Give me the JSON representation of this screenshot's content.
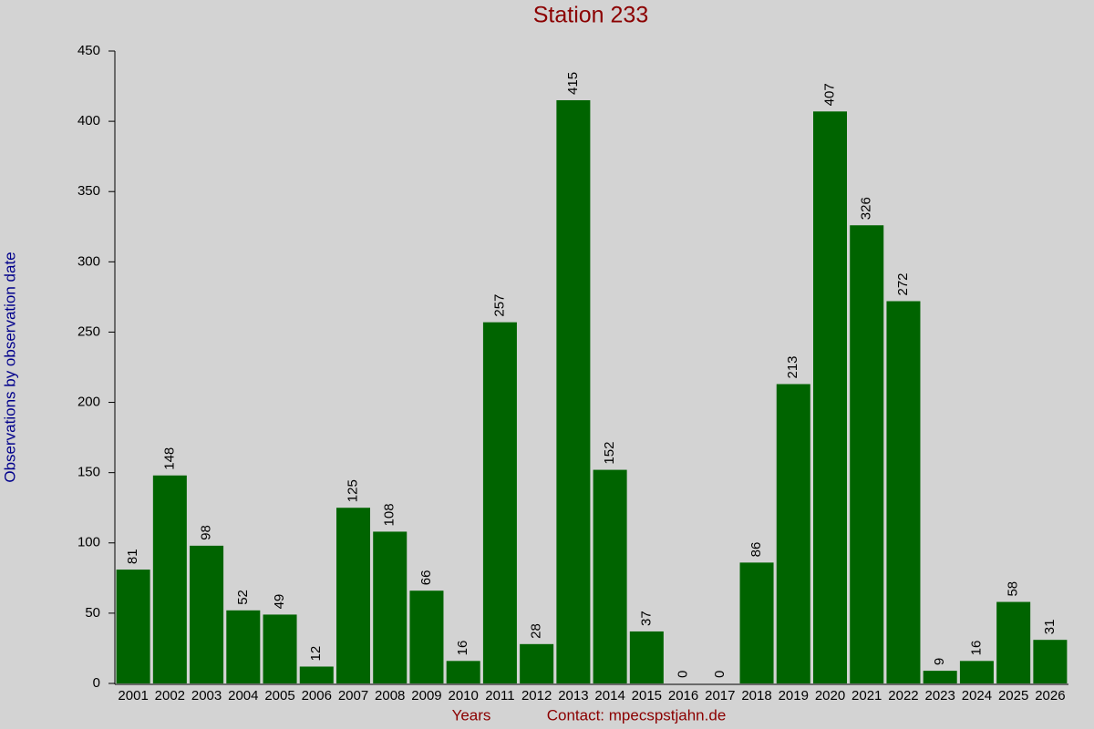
{
  "chart_data": {
    "type": "bar",
    "title": "Station 233",
    "ylabel": "Observations by observation date",
    "xlabel": "Years",
    "note": "Contact: mpecspstjahn.de",
    "categories": [
      "2001",
      "2002",
      "2003",
      "2004",
      "2005",
      "2006",
      "2007",
      "2008",
      "2009",
      "2010",
      "2011",
      "2012",
      "2013",
      "2014",
      "2015",
      "2016",
      "2017",
      "2018",
      "2019",
      "2020",
      "2021",
      "2022",
      "2023",
      "2024",
      "2025",
      "2026"
    ],
    "values": [
      81,
      148,
      98,
      52,
      49,
      12,
      125,
      108,
      66,
      16,
      257,
      28,
      415,
      152,
      37,
      0,
      0,
      86,
      213,
      407,
      326,
      272,
      9,
      16,
      58,
      31
    ],
    "color": "#006400",
    "ylim": [
      0,
      450
    ],
    "yticks": [
      0,
      50,
      100,
      150,
      200,
      250,
      300,
      350,
      400,
      450
    ]
  }
}
